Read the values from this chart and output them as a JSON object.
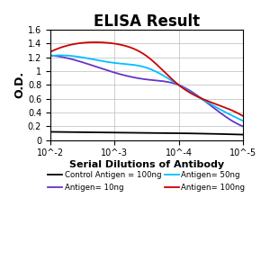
{
  "title": "ELISA Result",
  "ylabel": "O.D.",
  "xlabel": "Serial Dilutions of Antibody",
  "ylim": [
    0,
    1.6
  ],
  "yticks": [
    0,
    0.2,
    0.4,
    0.6,
    0.8,
    1.0,
    1.2,
    1.4,
    1.6
  ],
  "xtick_positions": [
    0,
    1,
    2,
    3
  ],
  "xtick_labels": [
    "10^-2",
    "10^-3",
    "10^-4",
    "10^-5"
  ],
  "lines": [
    {
      "label": "Control Antigen = 100ng",
      "color": "#000000",
      "x": [
        0,
        1,
        2,
        3
      ],
      "y": [
        0.12,
        0.11,
        0.1,
        0.08
      ]
    },
    {
      "label": "Antigen= 10ng",
      "color": "#6633CC",
      "x": [
        0,
        0.5,
        1.0,
        1.5,
        2.0,
        2.5,
        3.0
      ],
      "y": [
        1.23,
        1.13,
        0.98,
        0.88,
        0.8,
        0.5,
        0.2
      ]
    },
    {
      "label": "Antigen= 50ng",
      "color": "#00BFFF",
      "x": [
        0,
        0.5,
        1.0,
        1.5,
        2.0,
        2.5,
        3.0
      ],
      "y": [
        1.22,
        1.2,
        1.12,
        1.05,
        0.8,
        0.52,
        0.28
      ]
    },
    {
      "label": "Antigen= 100ng",
      "color": "#CC0000",
      "x": [
        0,
        0.3,
        0.7,
        1.0,
        1.5,
        2.0,
        2.5,
        3.0
      ],
      "y": [
        1.28,
        1.38,
        1.42,
        1.4,
        1.22,
        0.8,
        0.55,
        0.35
      ]
    }
  ],
  "legend_order": [
    0,
    1,
    2,
    3
  ],
  "background_color": "#ffffff",
  "grid_color": "#bbbbbb",
  "title_fontsize": 12,
  "label_fontsize": 8,
  "tick_fontsize": 7,
  "legend_fontsize": 6.2
}
